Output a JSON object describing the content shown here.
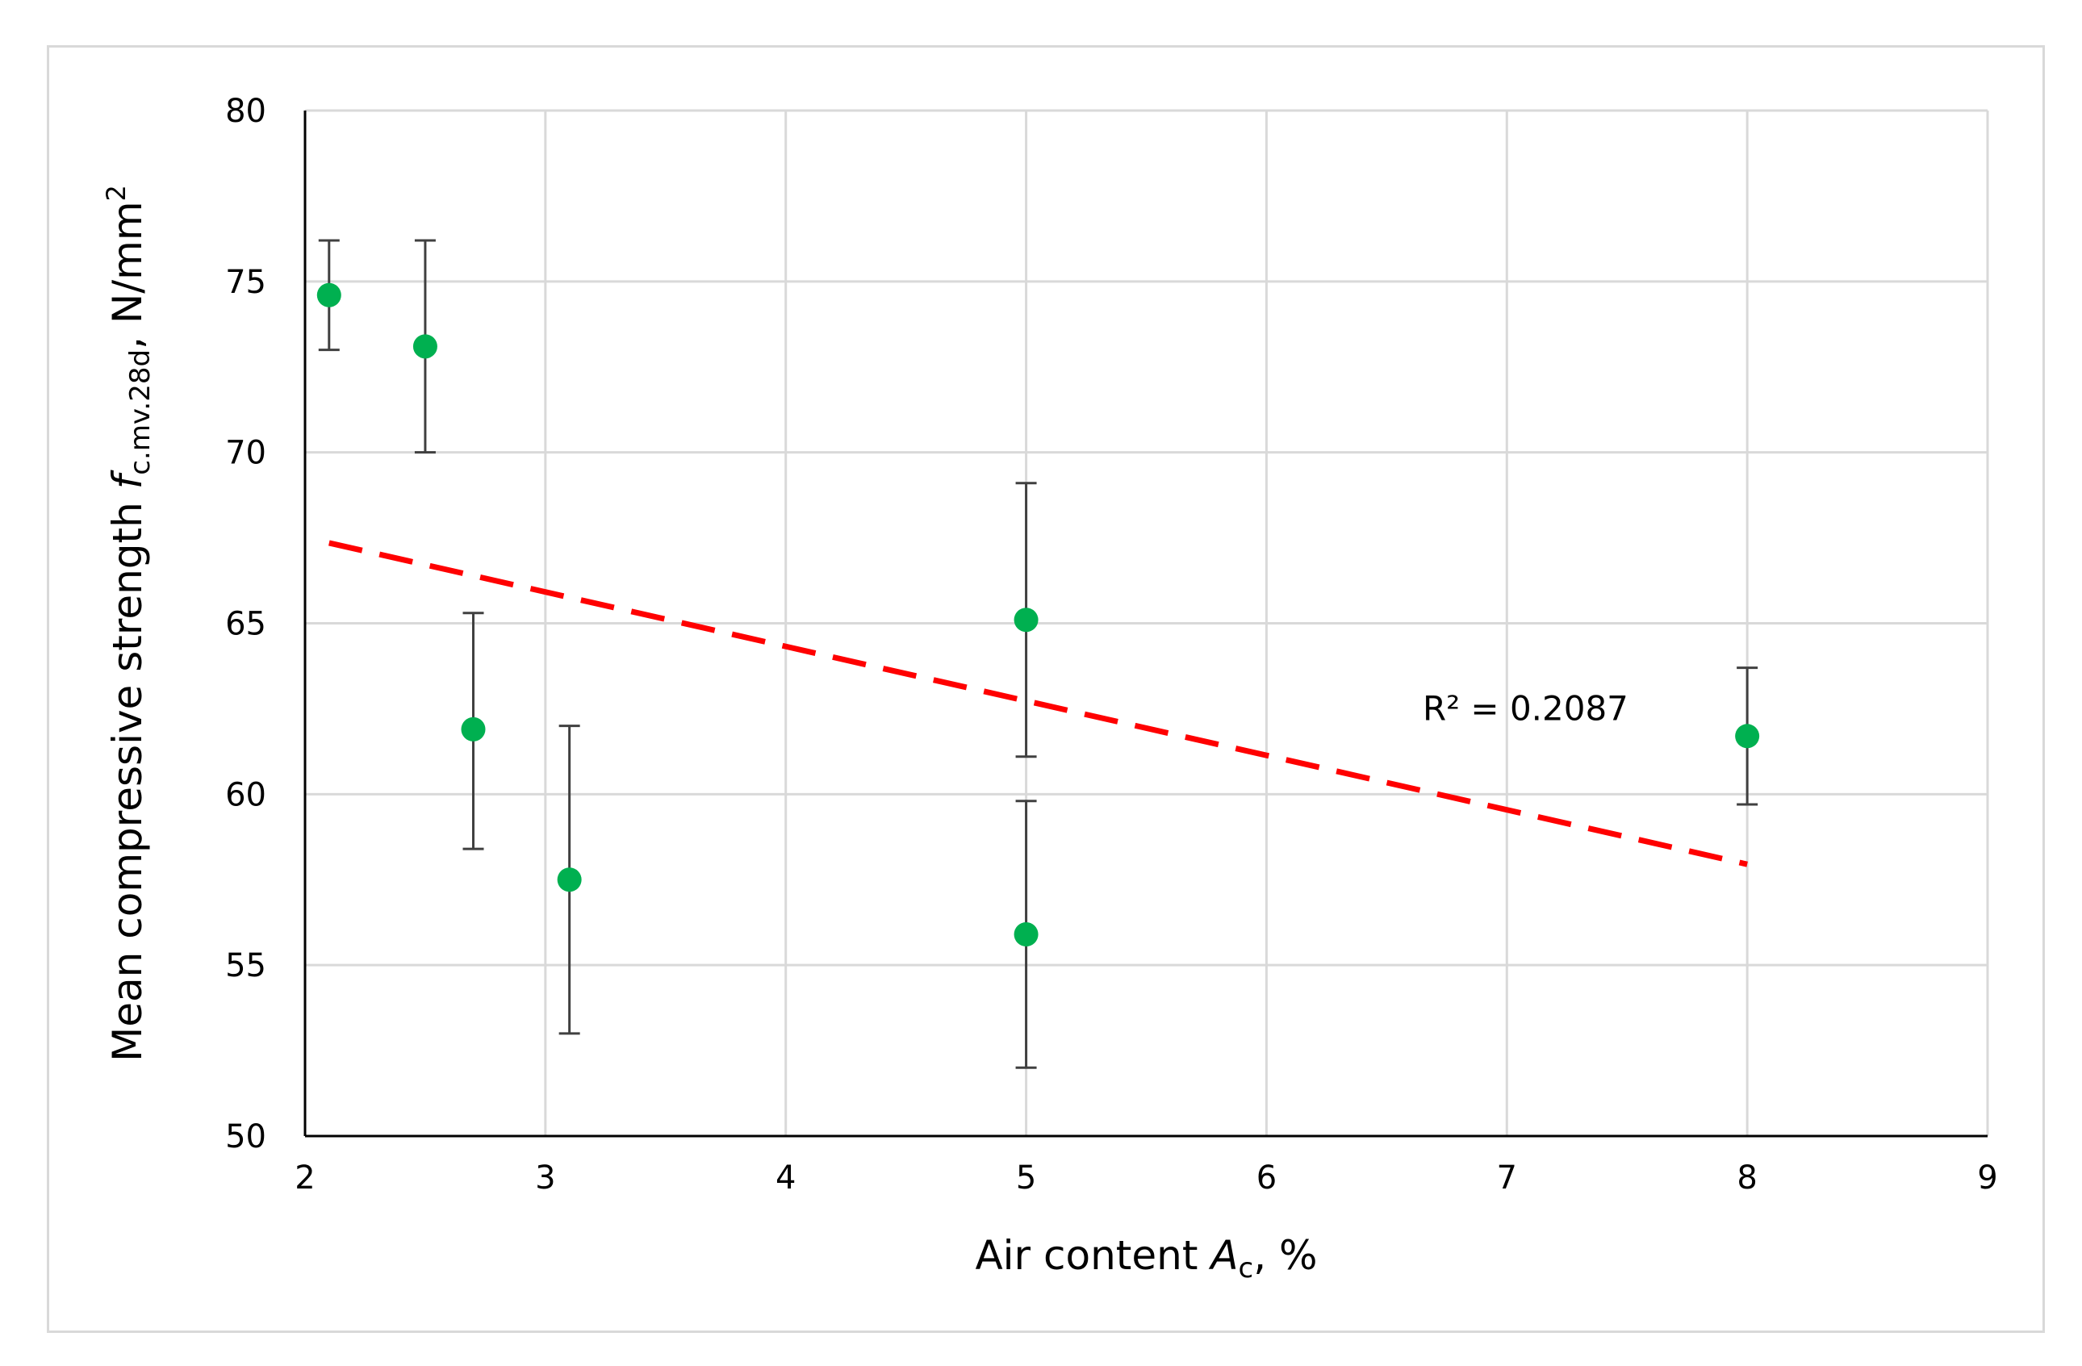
{
  "chart_data": {
    "type": "scatter",
    "xlabel": {
      "prefix": "Air content ",
      "var": "A",
      "sub": "c",
      "suffix": ", %"
    },
    "ylabel": {
      "prefix": "Mean compressive strength ",
      "var": "f",
      "sub": "c.mv.28d",
      "suffix": ", N/mm",
      "sup": "2"
    },
    "xlim": [
      2,
      9
    ],
    "ylim": [
      50,
      80
    ],
    "xticks": [
      2,
      3,
      4,
      5,
      6,
      7,
      8,
      9
    ],
    "yticks": [
      50,
      55,
      60,
      65,
      70,
      75,
      80
    ],
    "grid": true,
    "series": [
      {
        "points": [
          {
            "x": 2.1,
            "y": 74.6,
            "err_low": 73.0,
            "err_high": 76.2
          },
          {
            "x": 2.5,
            "y": 73.1,
            "err_low": 70.0,
            "err_high": 76.2
          },
          {
            "x": 2.7,
            "y": 61.9,
            "err_low": 58.4,
            "err_high": 65.3
          },
          {
            "x": 3.1,
            "y": 57.5,
            "err_low": 53.0,
            "err_high": 62.0
          },
          {
            "x": 5.0,
            "y": 65.1,
            "err_low": 61.1,
            "err_high": 69.1
          },
          {
            "x": 5.0,
            "y": 55.9,
            "err_low": 52.0,
            "err_high": 59.8
          },
          {
            "x": 8.0,
            "y": 61.7,
            "err_low": 59.7,
            "err_high": 63.7
          }
        ]
      }
    ],
    "trendline": {
      "type": "linear",
      "x": [
        2.1,
        8.0
      ],
      "y": [
        67.35,
        57.95
      ],
      "label": "R² = 0.2087",
      "label_anchor": [
        6.65,
        62.5
      ]
    },
    "colors": {
      "marker": "#00b050",
      "trendline": "#ff0000",
      "errorbar": "#404040",
      "grid": "#d9d9d9",
      "axis": "#000000"
    }
  }
}
